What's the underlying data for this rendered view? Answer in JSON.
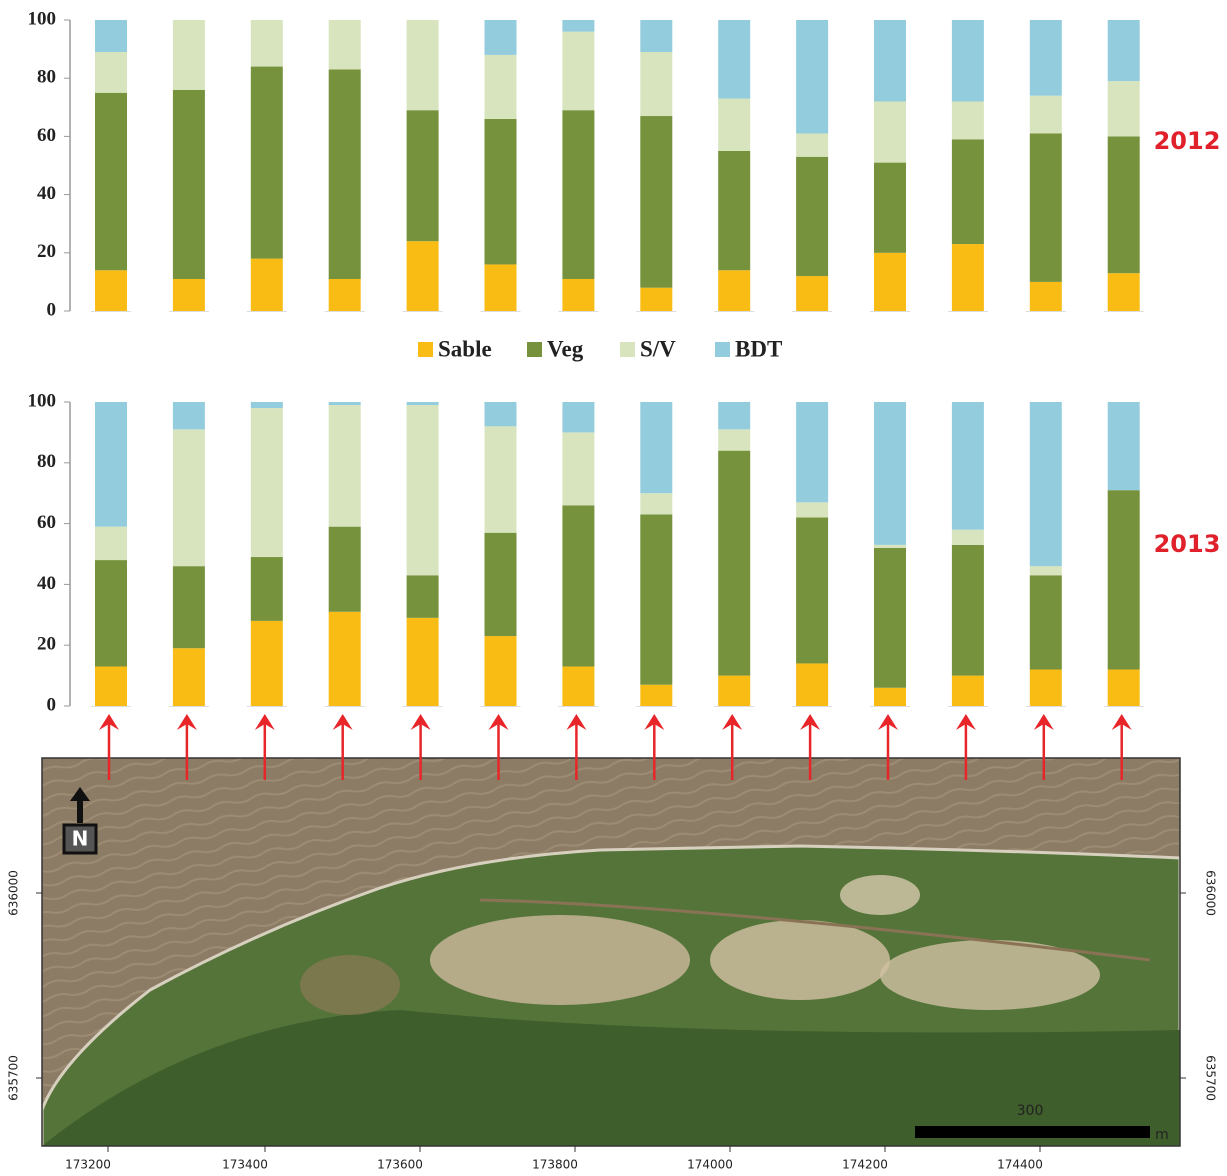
{
  "chart_data": [
    {
      "type": "bar",
      "stacked": true,
      "title": "2012",
      "categories": [
        null,
        null,
        null,
        null,
        null,
        null,
        null,
        null,
        null,
        null,
        null,
        null,
        null,
        null
      ],
      "series": [
        {
          "name": "Sable",
          "color": "#f9bc15",
          "values": [
            14,
            11,
            18,
            11,
            24,
            16,
            11,
            8,
            14,
            12,
            20,
            23,
            10,
            13
          ]
        },
        {
          "name": "Veg",
          "color": "#76923c",
          "values": [
            61,
            65,
            66,
            72,
            45,
            50,
            58,
            59,
            41,
            41,
            31,
            36,
            51,
            47
          ]
        },
        {
          "name": "S/V",
          "color": "#d7e4bd",
          "values": [
            14,
            24,
            16,
            17,
            31,
            22,
            27,
            22,
            18,
            8,
            21,
            13,
            13,
            19
          ]
        },
        {
          "name": "BDT",
          "color": "#93cddd",
          "values": [
            11,
            0,
            0,
            0,
            0,
            12,
            4,
            11,
            27,
            39,
            28,
            28,
            26,
            21
          ]
        }
      ],
      "ylim": [
        0,
        100
      ],
      "yticks": [
        0,
        20,
        40,
        60,
        80,
        100
      ],
      "grid": false
    },
    {
      "type": "bar",
      "stacked": true,
      "title": "2013",
      "categories": [
        null,
        null,
        null,
        null,
        null,
        null,
        null,
        null,
        null,
        null,
        null,
        null,
        null,
        null
      ],
      "series": [
        {
          "color": "#f9bc15",
          "values": [
            13,
            19,
            28,
            31,
            29,
            23,
            13,
            7,
            10,
            14,
            6,
            10,
            12,
            12
          ]
        },
        {
          "color": "#76923c",
          "values": [
            35,
            27,
            21,
            28,
            14,
            34,
            53,
            56,
            74,
            48,
            46,
            43,
            31,
            59
          ]
        },
        {
          "color": "#d7e4bd",
          "values": [
            11,
            45,
            49,
            40,
            56,
            35,
            24,
            7,
            7,
            5,
            1,
            5,
            3,
            0
          ]
        },
        {
          "color": "#93cddd",
          "values": [
            41,
            9,
            2,
            1,
            1,
            8,
            10,
            30,
            9,
            33,
            47,
            42,
            54,
            29
          ]
        }
      ],
      "ylim": [
        0,
        100
      ],
      "yticks": [
        0,
        20,
        40,
        60,
        80,
        100
      ],
      "grid": false
    }
  ],
  "map": {
    "x_labels": [
      "173200",
      "173400",
      "173600",
      "173800",
      "174000",
      "174200",
      "174400"
    ],
    "y_labels": [
      "636000",
      "635700"
    ],
    "scale_label": "300",
    "scale_unit": "m",
    "north": "N"
  }
}
